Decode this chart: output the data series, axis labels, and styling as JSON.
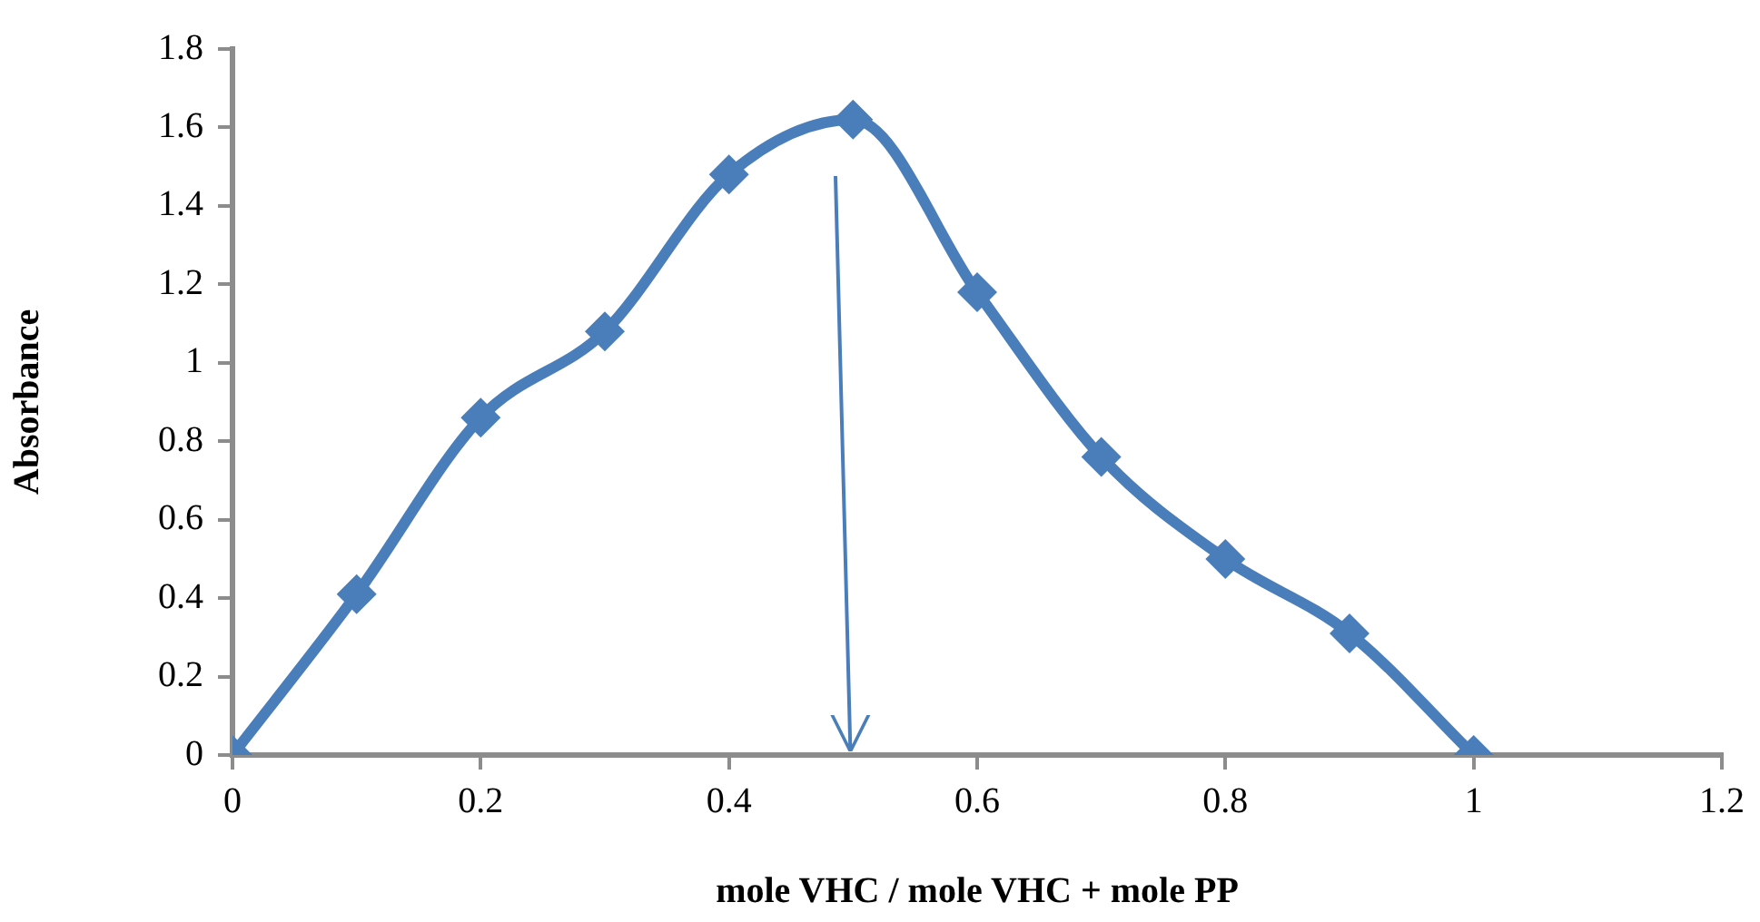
{
  "chart_data": {
    "type": "line",
    "xlabel": "mole VHC / mole VHC + mole PP",
    "ylabel": "Absorbance",
    "x": [
      0,
      0.1,
      0.2,
      0.3,
      0.4,
      0.5,
      0.6,
      0.7,
      0.8,
      0.9,
      1
    ],
    "series": [
      {
        "color": "#4a7ebb",
        "values": [
          0,
          0.41,
          0.86,
          1.08,
          1.48,
          1.62,
          1.18,
          0.76,
          0.5,
          0.31,
          0
        ]
      }
    ],
    "xlim": [
      0,
      1.2
    ],
    "xticks": [
      0,
      0.2,
      0.4,
      0.6,
      0.8,
      1,
      1.2
    ],
    "ylim": [
      0,
      1.8
    ],
    "yticks": [
      0,
      0.2,
      0.4,
      0.6,
      0.8,
      1,
      1.2,
      1.4,
      1.6,
      1.8
    ],
    "grid": false,
    "legend": false,
    "marker": "diamond",
    "line_style": "solid"
  }
}
